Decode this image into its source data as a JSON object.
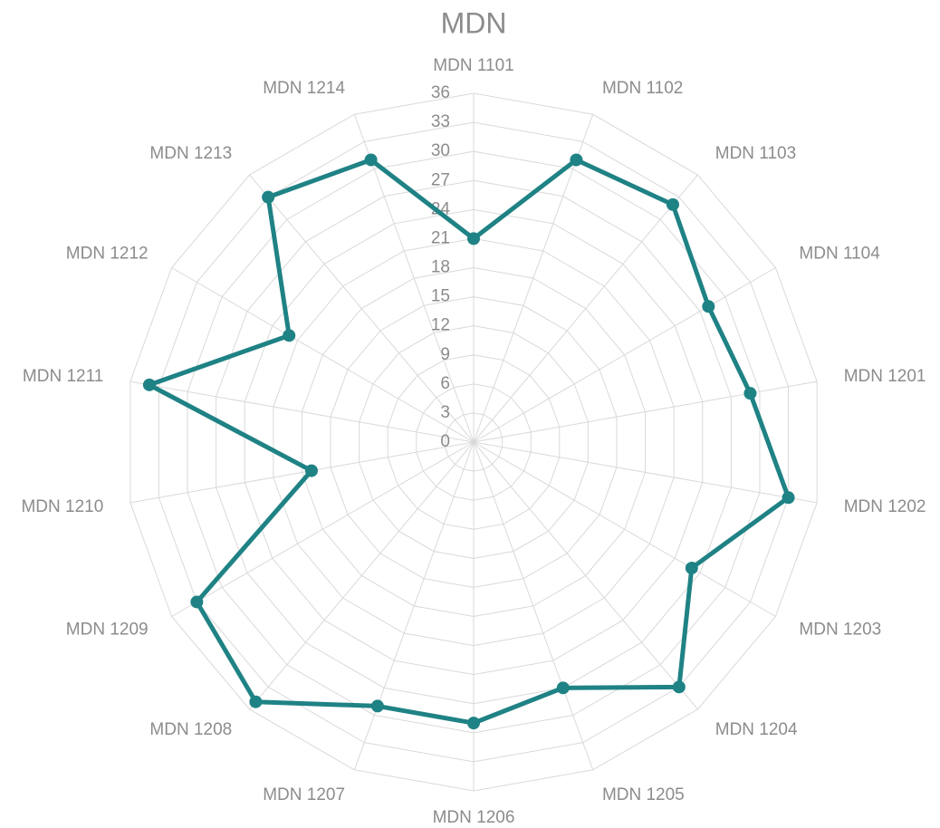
{
  "chart_data": {
    "type": "radar",
    "title": "MDN",
    "categories": [
      "MDN 1101",
      "MDN 1102",
      "MDN 1103",
      "MDN 1104",
      "MDN 1201",
      "MDN 1202",
      "MDN 1203",
      "MDN 1204",
      "MDN 1205",
      "MDN 1206",
      "MDN 1207",
      "MDN 1208",
      "MDN 1209",
      "MDN 1210",
      "MDN 1211",
      "MDN 1212",
      "MDN 1213",
      "MDN 1214"
    ],
    "series": [
      {
        "color": "#1f8285",
        "values": [
          21,
          31,
          32,
          28,
          29,
          33,
          26,
          33,
          27,
          29,
          29,
          35,
          33,
          17,
          34,
          22,
          33,
          31
        ]
      }
    ],
    "ylim": [
      0,
      36
    ],
    "yticks": [
      0,
      3,
      6,
      9,
      12,
      15,
      18,
      21,
      24,
      27,
      30,
      33,
      36
    ],
    "grid": true
  }
}
